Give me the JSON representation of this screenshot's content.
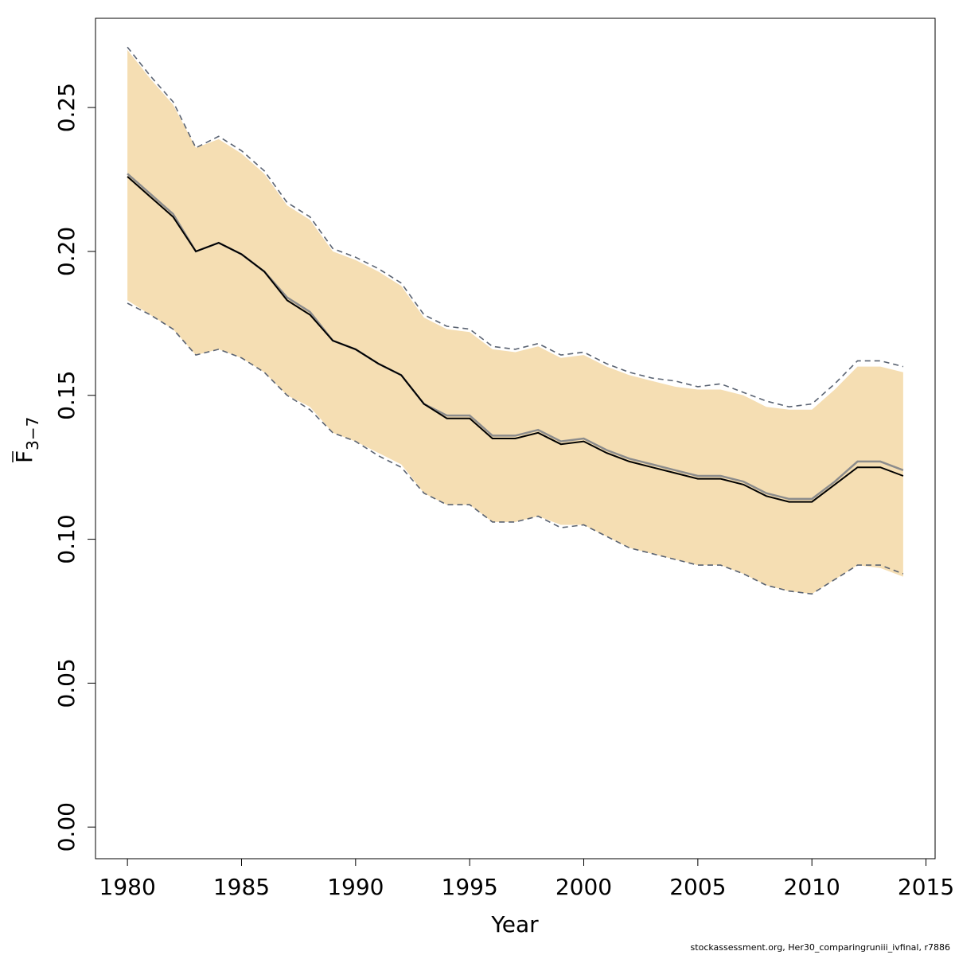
{
  "chart_data": {
    "type": "line",
    "title": "",
    "xlabel": "Year",
    "ylabel": {
      "main": "F",
      "sub": "3−7"
    },
    "xlim": [
      1978.6,
      2015.4
    ],
    "ylim": [
      -0.011,
      0.281
    ],
    "x_ticks": [
      1980,
      1985,
      1990,
      1995,
      2000,
      2005,
      2010,
      2015
    ],
    "y_ticks": [
      0.0,
      0.05,
      0.1,
      0.15,
      0.2,
      0.25
    ],
    "y_tick_labels": [
      "0.00",
      "0.05",
      "0.10",
      "0.15",
      "0.20",
      "0.25"
    ],
    "x": [
      1980,
      1981,
      1982,
      1983,
      1984,
      1985,
      1986,
      1987,
      1988,
      1989,
      1990,
      1991,
      1992,
      1993,
      1994,
      1995,
      1996,
      1997,
      1998,
      1999,
      2000,
      2001,
      2002,
      2003,
      2004,
      2005,
      2006,
      2007,
      2008,
      2009,
      2010,
      2011,
      2012,
      2013,
      2014
    ],
    "series": [
      {
        "role": "estimate",
        "values": [
          0.226,
          0.219,
          0.212,
          0.2,
          0.203,
          0.199,
          0.193,
          0.183,
          0.178,
          0.169,
          0.166,
          0.161,
          0.157,
          0.147,
          0.142,
          0.142,
          0.135,
          0.135,
          0.137,
          0.133,
          0.134,
          0.13,
          0.127,
          0.125,
          0.123,
          0.121,
          0.121,
          0.119,
          0.115,
          0.113,
          0.113,
          0.119,
          0.125,
          0.125,
          0.122
        ]
      },
      {
        "role": "estimate-reference",
        "values": [
          0.227,
          0.22,
          0.213,
          0.2,
          0.203,
          0.199,
          0.193,
          0.184,
          0.179,
          0.169,
          0.166,
          0.161,
          0.157,
          0.147,
          0.143,
          0.143,
          0.136,
          0.136,
          0.138,
          0.134,
          0.135,
          0.131,
          0.128,
          0.126,
          0.124,
          0.122,
          0.122,
          0.12,
          0.116,
          0.114,
          0.114,
          0.12,
          0.127,
          0.127,
          0.124
        ]
      },
      {
        "role": "upper-bound-dashed",
        "values": [
          0.271,
          0.261,
          0.252,
          0.236,
          0.24,
          0.235,
          0.228,
          0.217,
          0.212,
          0.201,
          0.198,
          0.194,
          0.189,
          0.178,
          0.174,
          0.173,
          0.167,
          0.166,
          0.168,
          0.164,
          0.165,
          0.161,
          0.158,
          0.156,
          0.155,
          0.153,
          0.154,
          0.151,
          0.148,
          0.146,
          0.147,
          0.154,
          0.162,
          0.162,
          0.16
        ]
      },
      {
        "role": "lower-bound-dashed",
        "values": [
          0.182,
          0.178,
          0.173,
          0.164,
          0.166,
          0.163,
          0.158,
          0.15,
          0.145,
          0.137,
          0.134,
          0.129,
          0.125,
          0.116,
          0.112,
          0.112,
          0.106,
          0.106,
          0.108,
          0.104,
          0.105,
          0.101,
          0.097,
          0.095,
          0.093,
          0.091,
          0.091,
          0.088,
          0.084,
          0.082,
          0.081,
          0.086,
          0.091,
          0.091,
          0.088
        ]
      },
      {
        "role": "band-upper",
        "values": [
          0.27,
          0.26,
          0.251,
          0.236,
          0.239,
          0.234,
          0.227,
          0.216,
          0.211,
          0.2,
          0.197,
          0.193,
          0.188,
          0.177,
          0.173,
          0.172,
          0.166,
          0.165,
          0.167,
          0.163,
          0.164,
          0.16,
          0.157,
          0.155,
          0.153,
          0.152,
          0.152,
          0.15,
          0.146,
          0.145,
          0.145,
          0.152,
          0.16,
          0.16,
          0.158
        ]
      },
      {
        "role": "band-lower",
        "values": [
          0.183,
          0.178,
          0.173,
          0.164,
          0.166,
          0.163,
          0.158,
          0.15,
          0.146,
          0.137,
          0.134,
          0.13,
          0.126,
          0.116,
          0.112,
          0.112,
          0.106,
          0.106,
          0.108,
          0.105,
          0.105,
          0.101,
          0.097,
          0.095,
          0.093,
          0.091,
          0.091,
          0.088,
          0.084,
          0.082,
          0.081,
          0.086,
          0.091,
          0.09,
          0.087
        ]
      }
    ],
    "colors": {
      "band": "#f5deb3",
      "estimate": "#000000",
      "estimate_reference": "#8c8c8c",
      "bounds": "#5a6372",
      "axis": "#000000"
    },
    "grid": false,
    "legend": "none"
  },
  "footer": "stockassessment.org, Her30_comparingruniii_ivfinal, r7886"
}
